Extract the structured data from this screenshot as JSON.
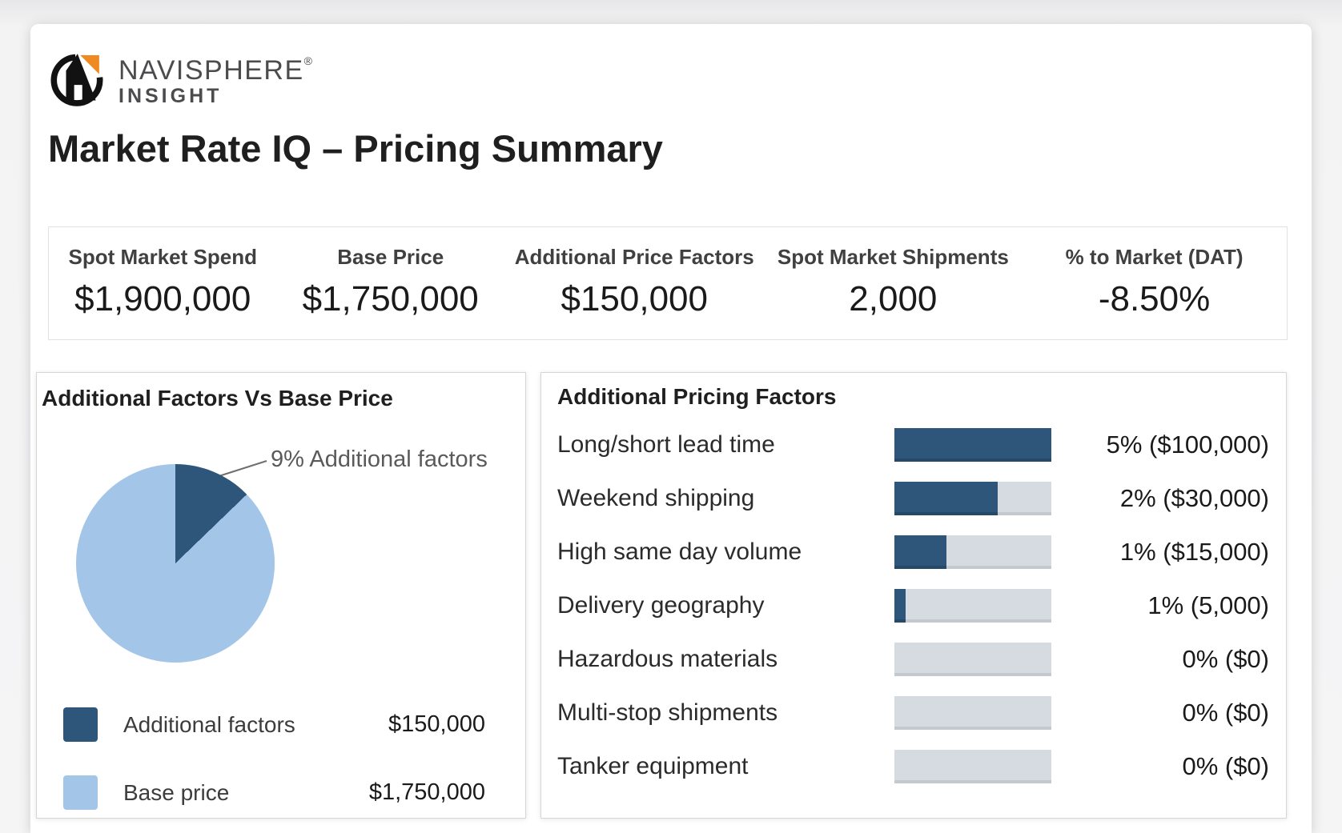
{
  "brand": {
    "name_line1": "NAVISPHERE",
    "registered": "®",
    "name_line2": "INSIGHT"
  },
  "page": {
    "title": "Market Rate IQ – Pricing Summary"
  },
  "kpis": [
    {
      "label": "Spot Market Spend",
      "value": "$1,900,000"
    },
    {
      "label": "Base Price",
      "value": "$1,750,000"
    },
    {
      "label": "Additional Price Factors",
      "value": "$150,000"
    },
    {
      "label": "Spot Market Shipments",
      "value": "2,000"
    },
    {
      "label": "% to Market (DAT)",
      "value": "-8.50%"
    }
  ],
  "pie_card": {
    "title": "Additional Factors Vs Base Price",
    "annotation": "9% Additional factors",
    "legend": [
      {
        "label": "Additional factors",
        "value": "$150,000",
        "color": "#2d567a"
      },
      {
        "label": "Base price",
        "value": "$1,750,000",
        "color": "#a3c6e8"
      }
    ]
  },
  "factors_card": {
    "title": "Additional Pricing Factors",
    "rows": [
      {
        "label": "Long/short lead time",
        "value": "5% ($100,000)",
        "fill_pct": 100
      },
      {
        "label": "Weekend shipping",
        "value": "2% ($30,000)",
        "fill_pct": 66
      },
      {
        "label": "High same day volume",
        "value": "1% ($15,000)",
        "fill_pct": 33
      },
      {
        "label": "Delivery geography",
        "value": "1% (5,000)",
        "fill_pct": 7
      },
      {
        "label": "Hazardous materials",
        "value": "0% ($0)",
        "fill_pct": 0
      },
      {
        "label": "Multi-stop shipments",
        "value": "0% ($0)",
        "fill_pct": 0
      },
      {
        "label": "Tanker equipment",
        "value": "0% ($0)",
        "fill_pct": 0
      }
    ]
  },
  "chart_data": [
    {
      "type": "pie",
      "title": "Additional Factors Vs Base Price",
      "slices": [
        {
          "label": "Additional factors",
          "value": 150000,
          "pct": 9,
          "color": "#2d567a"
        },
        {
          "label": "Base price",
          "value": 1750000,
          "pct": 91,
          "color": "#a3c6e8"
        }
      ],
      "annotation": "9% Additional factors",
      "drawn_dark_sweep_deg": 46,
      "legend_position": "bottom-left"
    },
    {
      "type": "bar",
      "orientation": "horizontal",
      "title": "Additional Pricing Factors",
      "categories": [
        "Long/short lead time",
        "Weekend shipping",
        "High same day volume",
        "Delivery geography",
        "Hazardous materials",
        "Multi-stop shipments",
        "Tanker equipment"
      ],
      "values_pct": [
        5,
        2,
        1,
        1,
        0,
        0,
        0
      ],
      "values_usd": [
        100000,
        30000,
        15000,
        5000,
        0,
        0,
        0
      ],
      "value_labels": [
        "5% ($100,000)",
        "2% ($30,000)",
        "1% ($15,000)",
        "1% (5,000)",
        "0% ($0)",
        "0% ($0)",
        "0% ($0)"
      ],
      "bar_fill_fractions": [
        1.0,
        0.66,
        0.33,
        0.07,
        0,
        0,
        0
      ],
      "xlim": [
        0,
        5
      ],
      "grid": false,
      "legend_position": "none"
    }
  ],
  "colors": {
    "navy": "#2d567a",
    "lightblue": "#a3c6e8",
    "track": "#d5dbe1",
    "logo_orange": "#ef8a22",
    "logo_black": "#121212"
  }
}
